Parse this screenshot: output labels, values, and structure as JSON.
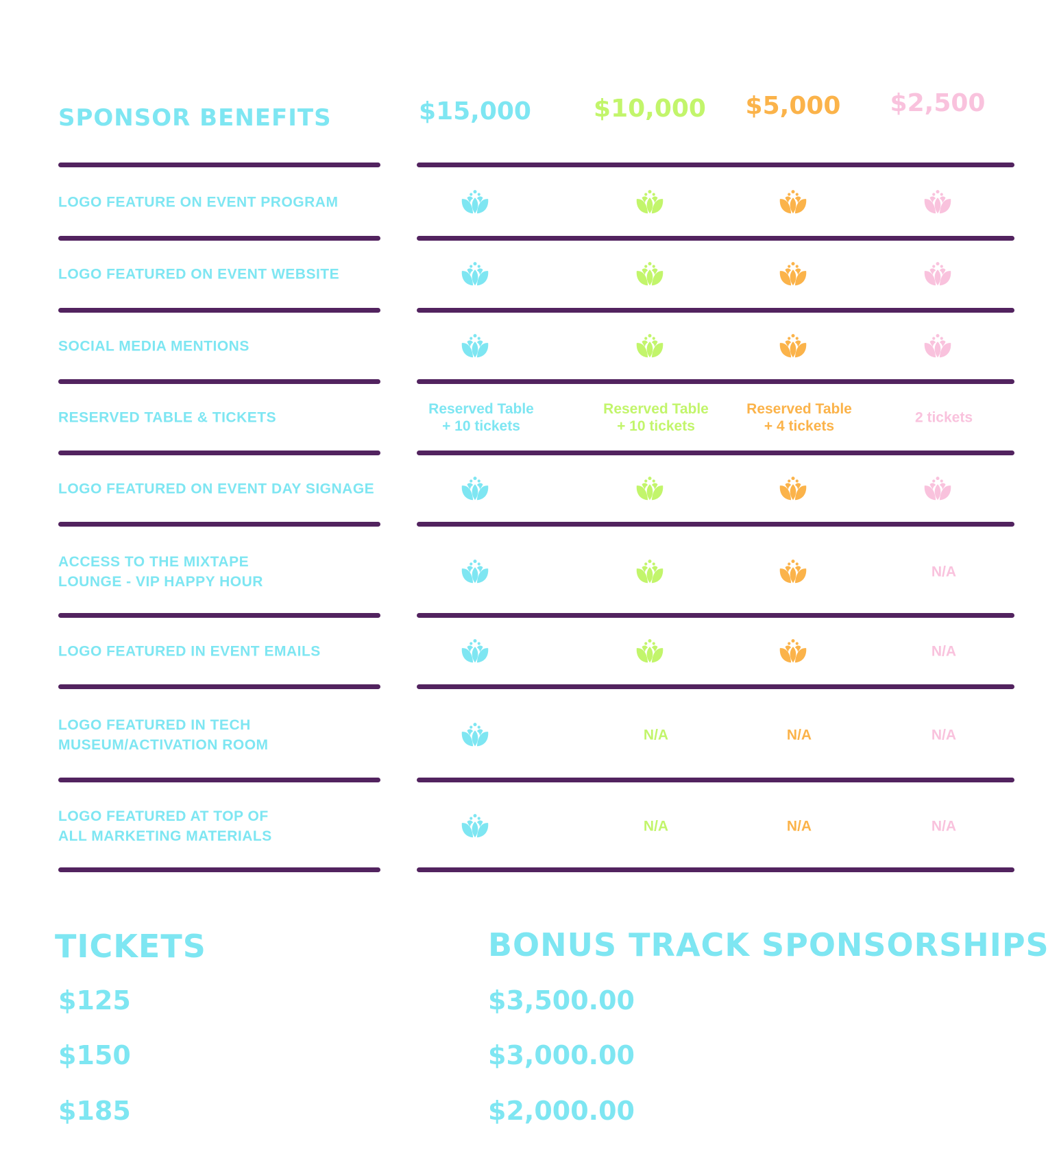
{
  "table": {
    "heading": "SPONSOR BENEFITS",
    "tiers": [
      {
        "price": "$15,000",
        "color": "#7ee6f2"
      },
      {
        "price": "$10,000",
        "color": "#c2f56b"
      },
      {
        "price": "$5,000",
        "color": "#fbb34a"
      },
      {
        "price": "$2,500",
        "color": "#f9c2dd"
      }
    ],
    "rows": [
      {
        "label": "LOGO FEATURE ON EVENT PROGRAM",
        "cells": [
          {
            "type": "icon"
          },
          {
            "type": "icon"
          },
          {
            "type": "icon"
          },
          {
            "type": "icon"
          }
        ]
      },
      {
        "label": "LOGO FEATURED ON EVENT WEBSITE",
        "cells": [
          {
            "type": "icon"
          },
          {
            "type": "icon"
          },
          {
            "type": "icon"
          },
          {
            "type": "icon"
          }
        ]
      },
      {
        "label": "SOCIAL MEDIA MENTIONS",
        "cells": [
          {
            "type": "icon"
          },
          {
            "type": "icon"
          },
          {
            "type": "icon"
          },
          {
            "type": "icon"
          }
        ]
      },
      {
        "label": "RESERVED TABLE & TICKETS",
        "cells": [
          {
            "type": "text",
            "line1": "Reserved Table",
            "line2": "+ 10 tickets"
          },
          {
            "type": "text",
            "line1": "Reserved Table",
            "line2": "+ 10 tickets"
          },
          {
            "type": "text",
            "line1": "Reserved Table",
            "line2": "+ 4 tickets"
          },
          {
            "type": "text",
            "line1": "2 tickets"
          }
        ]
      },
      {
        "label": "LOGO FEATURED ON EVENT DAY SIGNAGE",
        "cells": [
          {
            "type": "icon"
          },
          {
            "type": "icon"
          },
          {
            "type": "icon"
          },
          {
            "type": "icon"
          }
        ]
      },
      {
        "label": "ACCESS TO THE MIXTAPE\nLOUNGE - VIP HAPPY HOUR",
        "cells": [
          {
            "type": "icon"
          },
          {
            "type": "icon"
          },
          {
            "type": "icon"
          },
          {
            "type": "text",
            "line1": "N/A"
          }
        ]
      },
      {
        "label": "LOGO FEATURED IN EVENT EMAILS",
        "cells": [
          {
            "type": "icon"
          },
          {
            "type": "icon"
          },
          {
            "type": "icon"
          },
          {
            "type": "text",
            "line1": "N/A"
          }
        ]
      },
      {
        "label": "LOGO FEATURED IN TECH\nMUSEUM/ACTIVATION ROOM",
        "cells": [
          {
            "type": "icon"
          },
          {
            "type": "text",
            "line1": "N/A"
          },
          {
            "type": "text",
            "line1": "N/A"
          },
          {
            "type": "text",
            "line1": "N/A"
          }
        ]
      },
      {
        "label": "LOGO FEATURED AT TOP OF\nALL MARKETING MATERIALS",
        "cells": [
          {
            "type": "icon"
          },
          {
            "type": "text",
            "line1": "N/A"
          },
          {
            "type": "text",
            "line1": "N/A"
          },
          {
            "type": "text",
            "line1": "N/A"
          }
        ]
      }
    ]
  },
  "tickets": {
    "title": "TICKETS",
    "prices": [
      "$125",
      "$150",
      "$185"
    ]
  },
  "bonus": {
    "title": "BONUS TRACK SPONSORSHIPS",
    "prices": [
      "$3,500.00",
      "$3,000.00",
      "$2,000.00"
    ]
  }
}
